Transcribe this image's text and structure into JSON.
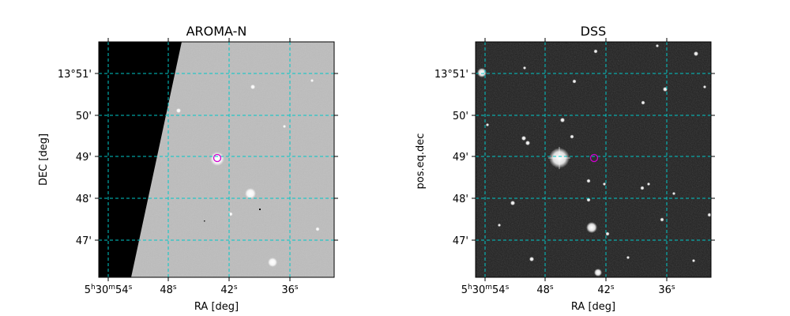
{
  "panels": [
    {
      "id": "left",
      "title": "AROMA-N",
      "xlabel": "RA [deg]",
      "ylabel": "DEC [deg]",
      "background": "#bdbdbd",
      "masked_region": "left",
      "target_marker_color": "#d000d0",
      "grid_color": "#00c8c8",
      "xticks": [
        {
          "h": "5",
          "m": "30",
          "s": "54"
        },
        {
          "s": "48"
        },
        {
          "s": "42"
        },
        {
          "s": "36"
        }
      ],
      "yticks": [
        {
          "deg": "13°51′",
          "text": "13°51'"
        },
        {
          "text": "50'"
        },
        {
          "text": "49'"
        },
        {
          "text": "48'"
        },
        {
          "text": "47'"
        }
      ]
    },
    {
      "id": "right",
      "title": "DSS",
      "xlabel": "RA [deg]",
      "ylabel": "pos.eq.dec",
      "background": "#1e1e1e",
      "target_marker_color": "#d000d0",
      "grid_color": "#00c8c8",
      "xticks": [
        {
          "h": "5",
          "m": "30",
          "s": "54"
        },
        {
          "s": "48"
        },
        {
          "s": "42"
        },
        {
          "s": "36"
        }
      ],
      "yticks": [
        {
          "text": "13°51'"
        },
        {
          "text": "50'"
        },
        {
          "text": "49'"
        },
        {
          "text": "48'"
        },
        {
          "text": "47'"
        }
      ]
    }
  ]
}
